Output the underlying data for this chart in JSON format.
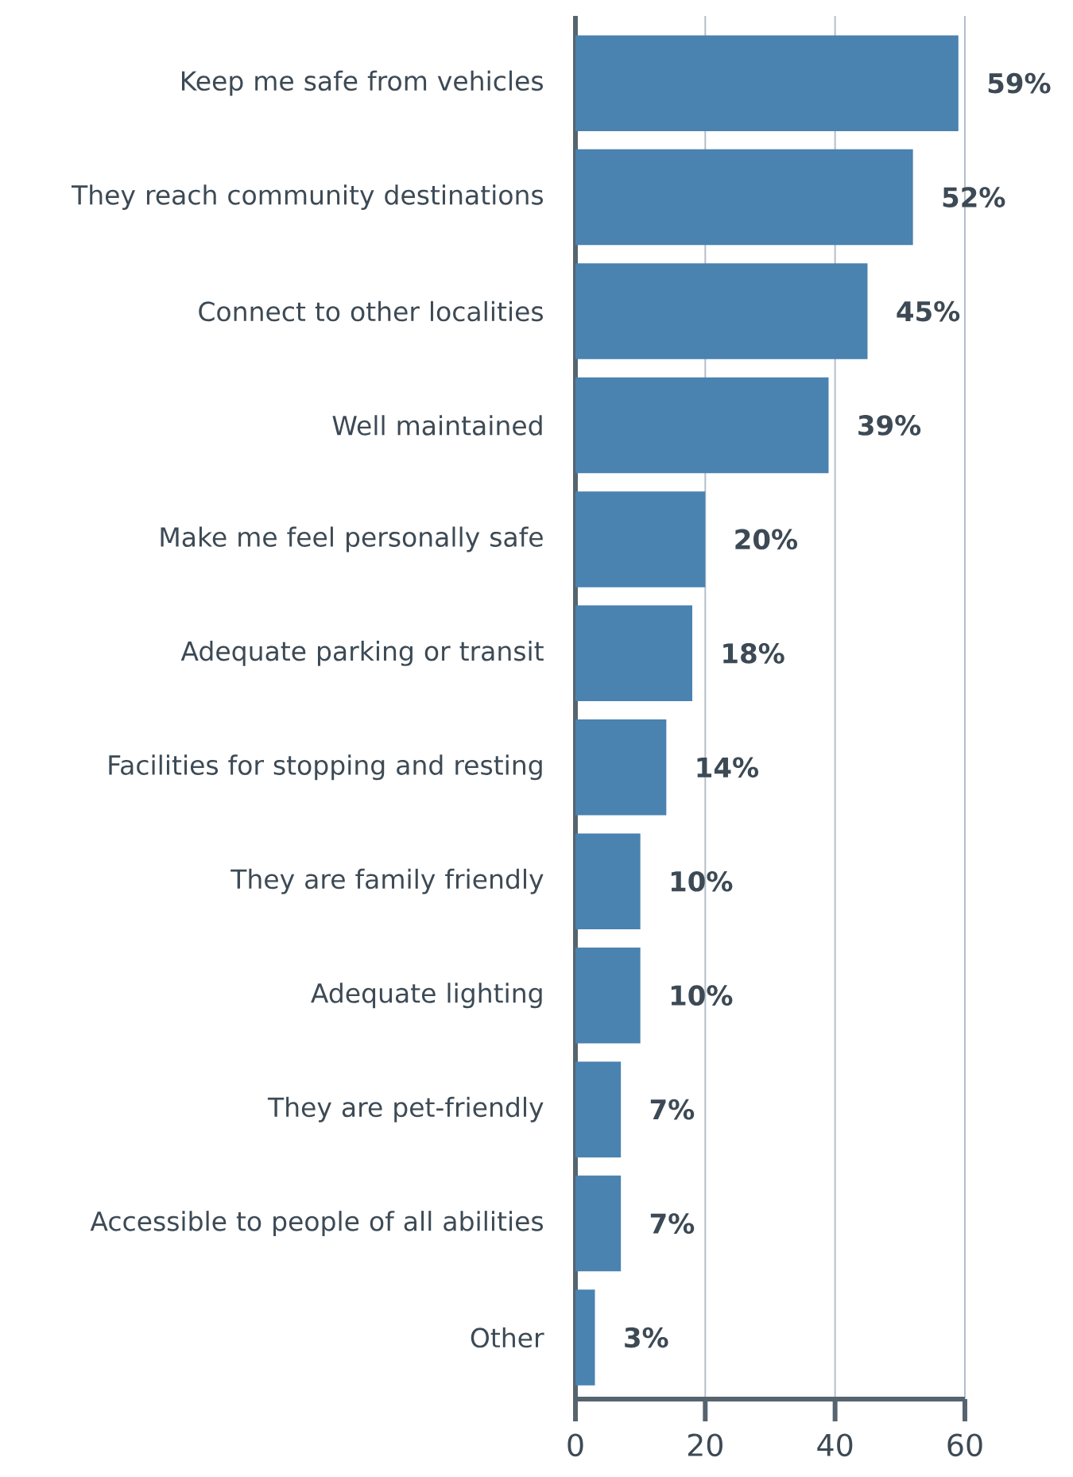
{
  "chart_data": {
    "type": "bar",
    "orientation": "horizontal",
    "categories": [
      "Keep me safe from vehicles",
      "They reach community destinations",
      "Connect to other localities",
      "Well maintained",
      "Make me feel personally safe",
      "Adequate parking or transit",
      "Facilities for stopping and resting",
      "They are family friendly",
      "Adequate lighting",
      "They are pet-friendly",
      "Accessible to people of all abilities",
      "Other"
    ],
    "values": [
      59,
      52,
      45,
      39,
      20,
      18,
      14,
      10,
      10,
      7,
      7,
      3
    ],
    "value_labels": [
      "59%",
      "52%",
      "45%",
      "39%",
      "20%",
      "18%",
      "14%",
      "10%",
      "10%",
      "7%",
      "7%",
      "3%"
    ],
    "color": "#4a82b0",
    "xlim": [
      0,
      60
    ],
    "xticks": [
      0,
      20,
      40,
      60
    ],
    "grid": "x"
  }
}
